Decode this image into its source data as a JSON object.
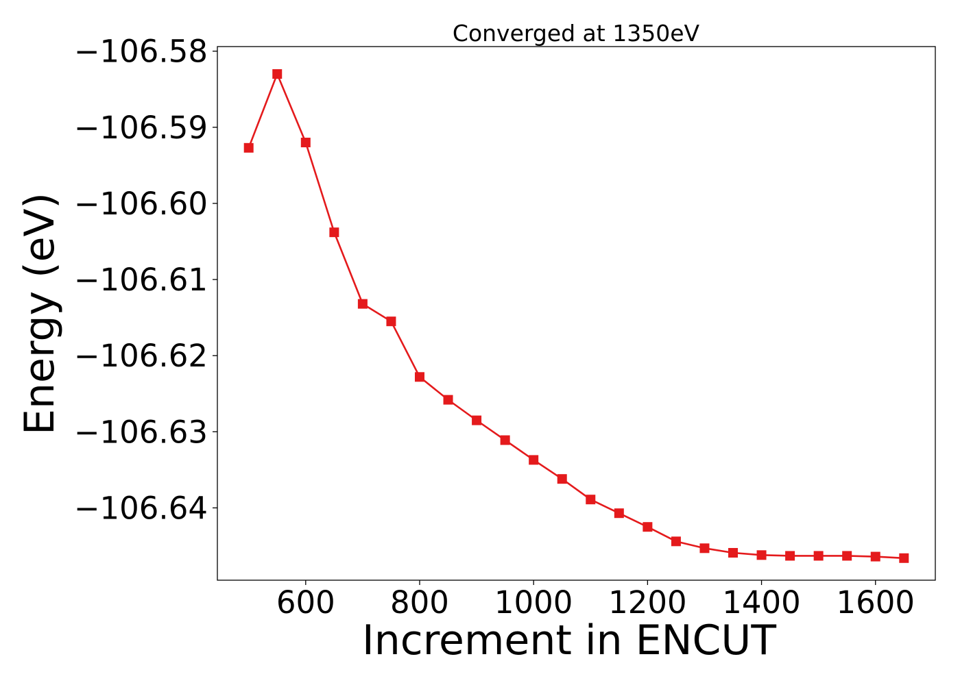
{
  "chart_data": {
    "type": "line",
    "title": "Converged at 1350eV",
    "xlabel": "Increment in ENCUT",
    "ylabel": "Energy (eV)",
    "x": [
      500,
      550,
      600,
      650,
      700,
      750,
      800,
      850,
      900,
      950,
      1000,
      1050,
      1100,
      1150,
      1200,
      1250,
      1300,
      1350,
      1400,
      1450,
      1500,
      1550,
      1600,
      1650
    ],
    "series": [
      {
        "values": [
          -106.5927,
          -106.583,
          -106.592,
          -106.6038,
          -106.6132,
          -106.6155,
          -106.6228,
          -106.6258,
          -106.6285,
          -106.6311,
          -106.6337,
          -106.6362,
          -106.6389,
          -106.6407,
          -106.6425,
          -106.6444,
          -106.6453,
          -106.6459,
          -106.6462,
          -106.6463,
          -106.6463,
          -106.6463,
          -106.6464,
          -106.6466
        ],
        "color": "#e41a1c",
        "marker": "square"
      }
    ],
    "xlim": [
      445,
      1705
    ],
    "ylim": [
      -106.6495,
      -106.5794
    ],
    "xticks": [
      600,
      800,
      1000,
      1200,
      1400,
      1600
    ],
    "xtick_labels": [
      "600",
      "800",
      "1000",
      "1200",
      "1400",
      "1600"
    ],
    "yticks": [
      -106.58,
      -106.59,
      -106.6,
      -106.61,
      -106.62,
      -106.63,
      -106.64
    ],
    "ytick_labels": [
      "−106.58",
      "−106.59",
      "−106.60",
      "−106.61",
      "−106.62",
      "−106.63",
      "−106.64"
    ],
    "grid": false,
    "legend": "none"
  }
}
